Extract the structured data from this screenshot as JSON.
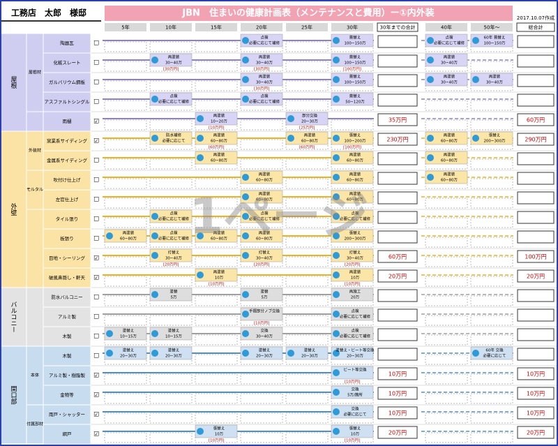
{
  "header": {
    "client": "工務店　太郎　様邸",
    "title": "JBN　住まいの健康計画表（メンテナンスと費用）ー①内外装",
    "date": "2017.10.07作成"
  },
  "columns": [
    "5年",
    "10年",
    "15年",
    "20年",
    "25年",
    "30年",
    "30年までの合計",
    "40年",
    "50年～",
    "総合計"
  ],
  "watermark": "1ページ",
  "sections": [
    {
      "name": "屋根",
      "groups": [
        {
          "name": "屋根材",
          "rows": [
            {
              "label": "陶器瓦",
              "check": "☐",
              "cells": [
                null,
                null,
                null,
                {
                  "work": "点検",
                  "cost": "必要に応じて補修"
                },
                null,
                {
                  "work": "葺替え",
                  "cost": "100~150万"
                },
                {
                  "work": "点検",
                  "cost": "必要に応じて補修"
                },
                {
                  "work": "60年 葺替え",
                  "cost": "100~150万"
                }
              ]
            },
            {
              "label": "化粧スレート",
              "check": "☐",
              "cells": [
                null,
                {
                  "work": "再塗装",
                  "cost": "30~40万",
                  "note": "[30万円]"
                },
                null,
                {
                  "work": "再塗装",
                  "cost": "30~40万",
                  "note": "[30万円]"
                },
                null,
                {
                  "work": "葺替え",
                  "cost": "100~150万",
                  "note": "[100万円]"
                },
                {
                  "work": "再塗装",
                  "cost": "30~40万"
                },
                null
              ]
            },
            {
              "label": "ガルバリウム鋼板",
              "check": "☐",
              "cells": [
                null,
                null,
                null,
                {
                  "work": "再塗装",
                  "cost": "30~40万",
                  "note": "[30万円]"
                },
                null,
                {
                  "work": "葺替え",
                  "cost": "100~150万"
                },
                {
                  "work": "再塗装",
                  "cost": "30~40万"
                },
                {
                  "work": "再塗装",
                  "cost": "30~40万"
                }
              ]
            },
            {
              "label": "アスファルトシングル",
              "check": "☐",
              "cells": [
                null,
                {
                  "work": "点検",
                  "cost": "必要に応じて補修"
                },
                null,
                {
                  "work": "点検",
                  "cost": "必要に応じて補修"
                },
                null,
                {
                  "work": "葺替え",
                  "cost": "50~120万"
                },
                null,
                null
              ]
            }
          ]
        },
        {
          "name": null,
          "rows": [
            {
              "label": "雨樋",
              "check": "☑",
              "cells": [
                null,
                null,
                {
                  "work": "再塗装",
                  "cost": "10~20万",
                  "note": "[10万円]"
                },
                null,
                {
                  "work": "部分交換",
                  "cost": "20~30万",
                  "note": "[25万円]"
                },
                null,
                null,
                null
              ],
              "sum30": "35万円",
              "total": "60万円"
            }
          ]
        }
      ]
    },
    {
      "name": "外壁",
      "groups": [
        {
          "name": "外装材",
          "rows": [
            {
              "label": "窯業系サイディング",
              "check": "☑",
              "cells": [
                null,
                {
                  "work": "防水補修",
                  "cost": "必要に応じて"
                },
                {
                  "work": "再塗装",
                  "cost": "60~80万",
                  "note": "[60万円]"
                },
                null,
                {
                  "work": "再塗装",
                  "cost": "60~80万",
                  "note": "[60万円]"
                },
                {
                  "work": "張替え",
                  "cost": "100~200万",
                  "note": "[100万円]"
                },
                {
                  "work": "再塗装",
                  "cost": "60~80万"
                },
                {
                  "work": "張替え",
                  "cost": "200~300万"
                }
              ],
              "sum30": "230万円",
              "total": "290万円"
            },
            {
              "label": "金属系サイディング",
              "check": "☐",
              "cells": [
                null,
                null,
                {
                  "work": "再塗装",
                  "cost": "60~80万"
                },
                null,
                null,
                {
                  "work": "再塗装",
                  "cost": "60~80万"
                },
                {
                  "work": "再塗装",
                  "cost": "60~80万"
                },
                null
              ]
            }
          ]
        },
        {
          "name": "モルタル",
          "rows": [
            {
              "label": "吹付け仕上げ",
              "check": "☐",
              "cells": [
                null,
                null,
                null,
                {
                  "work": "再塗装",
                  "cost": "60~80万"
                },
                null,
                {
                  "work": "再塗装",
                  "cost": "60~80万"
                },
                {
                  "work": "再塗装",
                  "cost": "60~80万"
                },
                null
              ]
            },
            {
              "label": "左官仕上げ",
              "check": "☐",
              "cells": [
                null,
                null,
                null,
                {
                  "work": "再塗装",
                  "cost": "60~80万"
                },
                null,
                {
                  "work": "再塗装",
                  "cost": "60~80万"
                },
                null,
                null
              ]
            }
          ]
        },
        {
          "name": null,
          "rows": [
            {
              "label": "タイル張り",
              "check": "☐",
              "cells": [
                null,
                {
                  "work": "点検",
                  "cost": "必要に応じて補修"
                },
                null,
                {
                  "work": "点検",
                  "cost": "必要に応じて補修"
                },
                null,
                {
                  "work": "点検",
                  "cost": "必要に応じて補修"
                },
                null,
                null
              ]
            },
            {
              "label": "板張り",
              "check": "☐",
              "cells": [
                {
                  "work": "再塗装",
                  "cost": "60~80万"
                },
                {
                  "work": "点検",
                  "cost": "必要に応じて補修"
                },
                {
                  "work": "再塗装",
                  "cost": "60~80万"
                },
                {
                  "work": "再塗装",
                  "cost": "60~80万"
                },
                null,
                {
                  "work": "張替え",
                  "cost": "200~300万"
                },
                null,
                null
              ]
            },
            {
              "label": "目地・シーリング",
              "check": "☑",
              "cells": [
                null,
                {
                  "work": "打替え",
                  "cost": "30~40万",
                  "note": "[20万円]"
                },
                null,
                {
                  "work": "打替え",
                  "cost": "30~40万",
                  "note": "[20万円]"
                },
                null,
                {
                  "work": "打替え",
                  "cost": "30~40万",
                  "note": "[20万円]"
                },
                null,
                null
              ],
              "sum30": "60万円",
              "total": "100万円"
            },
            {
              "label": "破風鼻隠し・軒天",
              "check": "☑",
              "cells": [
                null,
                null,
                {
                  "work": "再塗装",
                  "cost": "10万",
                  "note": "[10万円]"
                },
                null,
                null,
                {
                  "work": "再塗装",
                  "cost": "10万",
                  "note": "[10万円]"
                },
                null,
                null
              ],
              "sum30": "20万円",
              "total": "20万円"
            }
          ]
        }
      ]
    },
    {
      "name": "バルコニー",
      "groups": [
        {
          "name": null,
          "rows": [
            {
              "label": "防水バルコニー",
              "check": "☐",
              "cells": [
                null,
                {
                  "work": "塗替",
                  "cost": "5万"
                },
                null,
                {
                  "work": "塗替",
                  "cost": "5万"
                },
                null,
                {
                  "work": "再施工",
                  "cost": "20万"
                },
                null,
                null
              ]
            },
            {
              "label": "アルミ製",
              "check": "☐",
              "cells": [
                null,
                null,
                null,
                {
                  "work": "手摺部分ノブ交換",
                  "cost": "",
                  "note": "[10万円]"
                },
                null,
                {
                  "work": "点検",
                  "cost": "必要に応じて補修"
                },
                null,
                null
              ]
            },
            {
              "label": "木製",
              "check": "☐",
              "cells": [
                {
                  "work": "塗替え",
                  "cost": "10~15万"
                },
                {
                  "work": "塗替え",
                  "cost": "10~15万"
                },
                null,
                {
                  "work": "交換",
                  "cost": "30~40万"
                },
                null,
                {
                  "work": "点検",
                  "cost": "必要に応じて補修"
                },
                null,
                null
              ]
            }
          ]
        }
      ]
    },
    {
      "name": "開口部",
      "groups": [
        {
          "name": "本体",
          "rows": [
            {
              "label": "木製",
              "check": "☐",
              "cells": [
                {
                  "work": "塗替え",
                  "cost": "20~30万"
                },
                {
                  "work": "塗替え",
                  "cost": "20~30万"
                },
                null,
                {
                  "work": "塗替え",
                  "cost": "20~30万"
                },
                {
                  "work": "塗替え",
                  "cost": "20~30万"
                },
                {
                  "work": "塗替え・ビート等交換",
                  "cost": "20~30万"
                },
                null,
                {
                  "work": "60年 交換",
                  "cost": "必要に応じて"
                }
              ]
            },
            {
              "label": "アルミ製・樹脂製",
              "check": "☑",
              "cells": [
                null,
                null,
                null,
                null,
                null,
                {
                  "work": "ビート等交換",
                  "cost": "",
                  "note": "[10万円]"
                },
                null,
                null
              ],
              "sum30": "10万円",
              "total": "10万円"
            },
            {
              "label": "金物等",
              "check": "☑",
              "cells": [
                null,
                null,
                null,
                null,
                null,
                {
                  "work": "交換",
                  "cost": "5万/箇所"
                },
                null,
                null
              ],
              "sum30": "10万円",
              "total": "10万円"
            }
          ]
        },
        {
          "name": "付属部材",
          "rows": [
            {
              "label": "雨戸・シャッター",
              "check": "☑",
              "cells": [
                null,
                null,
                null,
                null,
                null,
                {
                  "work": "交換",
                  "cost": "必要に応じて"
                },
                null,
                null
              ],
              "sum30": "10万円",
              "total": "10万円"
            },
            {
              "label": "網戸",
              "check": "☑",
              "cells": [
                null,
                null,
                {
                  "work": "張替え",
                  "cost": "10万",
                  "note": "[10万円]"
                },
                null,
                null,
                {
                  "work": "張替え",
                  "cost": "10万",
                  "note": "[10万円]"
                },
                null,
                null
              ],
              "sum30": "20万円",
              "total": "20万円"
            }
          ]
        }
      ]
    }
  ]
}
